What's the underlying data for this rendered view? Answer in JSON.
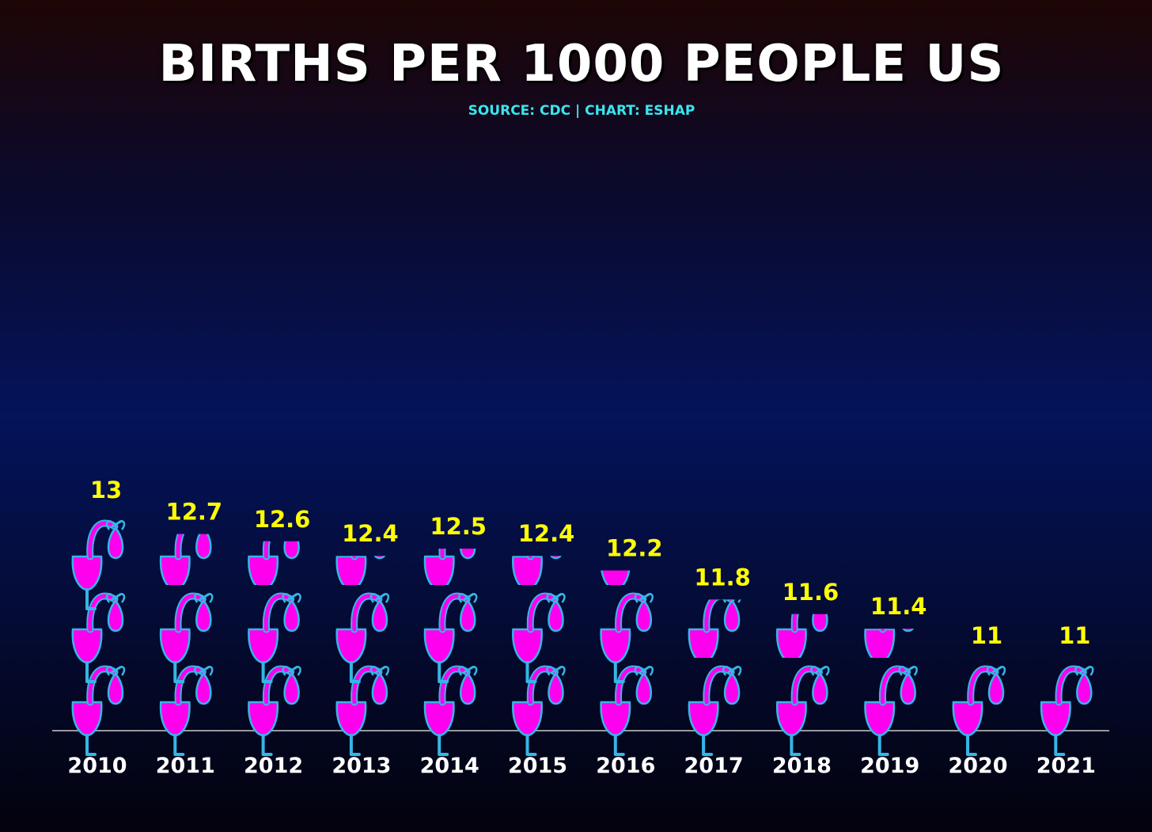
{
  "chart_data": {
    "type": "bar",
    "title": "BIRTHS PER 1000 PEOPLE US",
    "subtitle": "SOURCE: CDC | CHART: ESHAP",
    "categories": [
      "2010",
      "2011",
      "2012",
      "2013",
      "2014",
      "2015",
      "2016",
      "2017",
      "2018",
      "2019",
      "2020",
      "2021"
    ],
    "values": [
      13,
      12.7,
      12.6,
      12.4,
      12.5,
      12.4,
      12.2,
      11.8,
      11.6,
      11.4,
      11,
      11
    ],
    "value_labels": [
      "13",
      "12.7",
      "12.6",
      "12.4",
      "12.5",
      "12.4",
      "12.2",
      "11.8",
      "11.6",
      "11.4",
      "11",
      "11"
    ],
    "baseline": 10,
    "icon": "stork-with-baby-bundle-icon",
    "grid": false,
    "legend": "none",
    "colors": {
      "icon_fill": "#ff00ee",
      "icon_outline": "#35b6e6",
      "value_label": "#ffff00",
      "axis_label": "#ffffff",
      "subtitle": "#39e6ee",
      "axis_line": "#c8c8c8"
    }
  }
}
